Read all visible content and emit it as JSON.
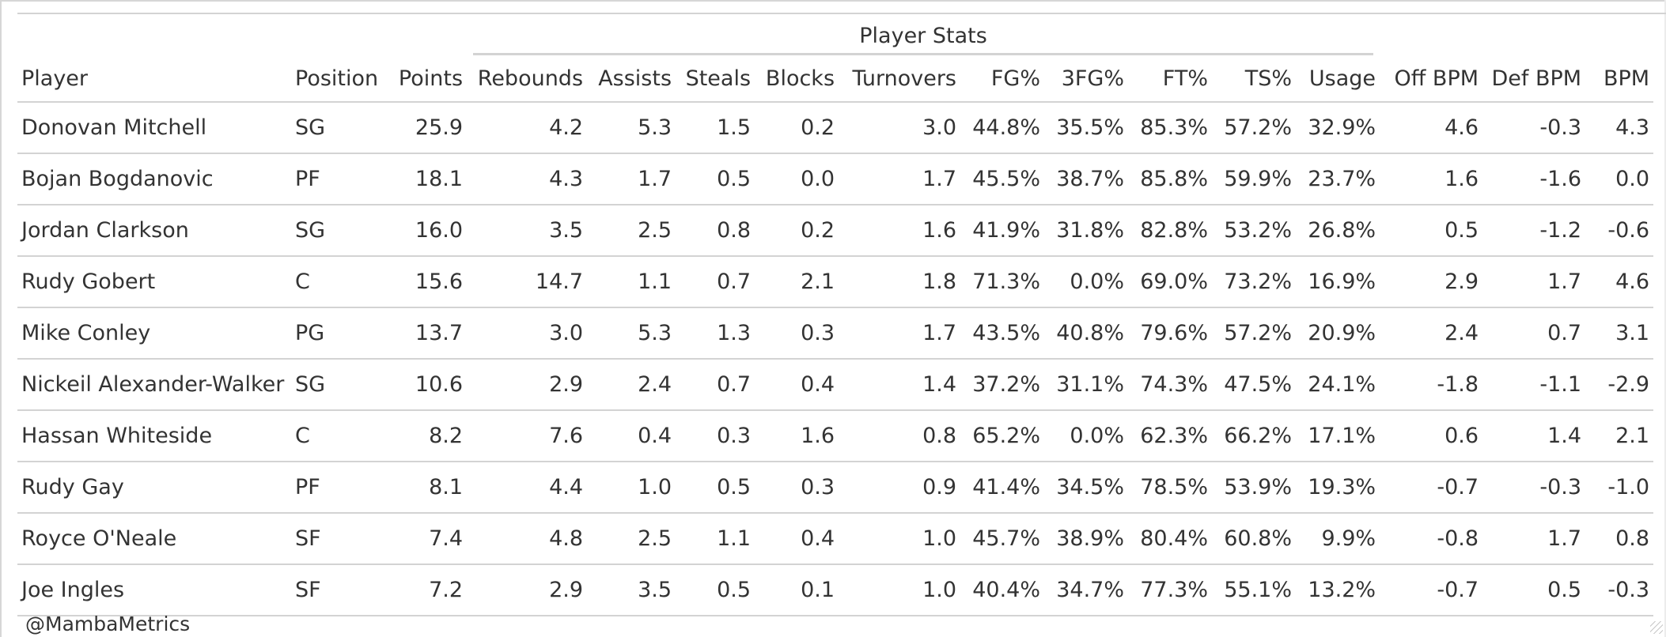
{
  "table": {
    "spanner_label": "Player Stats",
    "columns": [
      {
        "key": "player",
        "label": "Player",
        "align": "left"
      },
      {
        "key": "position",
        "label": "Position",
        "align": "left"
      },
      {
        "key": "points",
        "label": "Points",
        "align": "right"
      },
      {
        "key": "rebounds",
        "label": "Rebounds",
        "align": "right"
      },
      {
        "key": "assists",
        "label": "Assists",
        "align": "right"
      },
      {
        "key": "steals",
        "label": "Steals",
        "align": "right"
      },
      {
        "key": "blocks",
        "label": "Blocks",
        "align": "right"
      },
      {
        "key": "turnovers",
        "label": "Turnovers",
        "align": "right"
      },
      {
        "key": "fg",
        "label": "FG%",
        "align": "right"
      },
      {
        "key": "fg3",
        "label": "3FG%",
        "align": "right"
      },
      {
        "key": "ft",
        "label": "FT%",
        "align": "right"
      },
      {
        "key": "ts",
        "label": "TS%",
        "align": "right"
      },
      {
        "key": "usage",
        "label": "Usage",
        "align": "right"
      },
      {
        "key": "obpm",
        "label": "Off BPM",
        "align": "right"
      },
      {
        "key": "dbpm",
        "label": "Def BPM",
        "align": "right"
      },
      {
        "key": "bpm",
        "label": "BPM",
        "align": "right"
      }
    ],
    "rows": [
      [
        "Donovan Mitchell",
        "SG",
        "25.9",
        "4.2",
        "5.3",
        "1.5",
        "0.2",
        "3.0",
        "44.8%",
        "35.5%",
        "85.3%",
        "57.2%",
        "32.9%",
        "4.6",
        "-0.3",
        "4.3"
      ],
      [
        "Bojan Bogdanovic",
        "PF",
        "18.1",
        "4.3",
        "1.7",
        "0.5",
        "0.0",
        "1.7",
        "45.5%",
        "38.7%",
        "85.8%",
        "59.9%",
        "23.7%",
        "1.6",
        "-1.6",
        "0.0"
      ],
      [
        "Jordan Clarkson",
        "SG",
        "16.0",
        "3.5",
        "2.5",
        "0.8",
        "0.2",
        "1.6",
        "41.9%",
        "31.8%",
        "82.8%",
        "53.2%",
        "26.8%",
        "0.5",
        "-1.2",
        "-0.6"
      ],
      [
        "Rudy Gobert",
        "C",
        "15.6",
        "14.7",
        "1.1",
        "0.7",
        "2.1",
        "1.8",
        "71.3%",
        "0.0%",
        "69.0%",
        "73.2%",
        "16.9%",
        "2.9",
        "1.7",
        "4.6"
      ],
      [
        "Mike Conley",
        "PG",
        "13.7",
        "3.0",
        "5.3",
        "1.3",
        "0.3",
        "1.7",
        "43.5%",
        "40.8%",
        "79.6%",
        "57.2%",
        "20.9%",
        "2.4",
        "0.7",
        "3.1"
      ],
      [
        "Nickeil Alexander-Walker",
        "SG",
        "10.6",
        "2.9",
        "2.4",
        "0.7",
        "0.4",
        "1.4",
        "37.2%",
        "31.1%",
        "74.3%",
        "47.5%",
        "24.1%",
        "-1.8",
        "-1.1",
        "-2.9"
      ],
      [
        "Hassan Whiteside",
        "C",
        "8.2",
        "7.6",
        "0.4",
        "0.3",
        "1.6",
        "0.8",
        "65.2%",
        "0.0%",
        "62.3%",
        "66.2%",
        "17.1%",
        "0.6",
        "1.4",
        "2.1"
      ],
      [
        "Rudy Gay",
        "PF",
        "8.1",
        "4.4",
        "1.0",
        "0.5",
        "0.3",
        "0.9",
        "41.4%",
        "34.5%",
        "78.5%",
        "53.9%",
        "19.3%",
        "-0.7",
        "-0.3",
        "-1.0"
      ],
      [
        "Royce O'Neale",
        "SF",
        "7.4",
        "4.8",
        "2.5",
        "1.1",
        "0.4",
        "1.0",
        "45.7%",
        "38.9%",
        "80.4%",
        "60.8%",
        "9.9%",
        "-0.8",
        "1.7",
        "0.8"
      ],
      [
        "Joe Ingles",
        "SF",
        "7.2",
        "2.9",
        "3.5",
        "0.5",
        "0.1",
        "1.0",
        "40.4%",
        "34.7%",
        "77.3%",
        "55.1%",
        "13.2%",
        "-0.7",
        "0.5",
        "-0.3"
      ]
    ]
  },
  "source_note": "@MambaMetrics"
}
